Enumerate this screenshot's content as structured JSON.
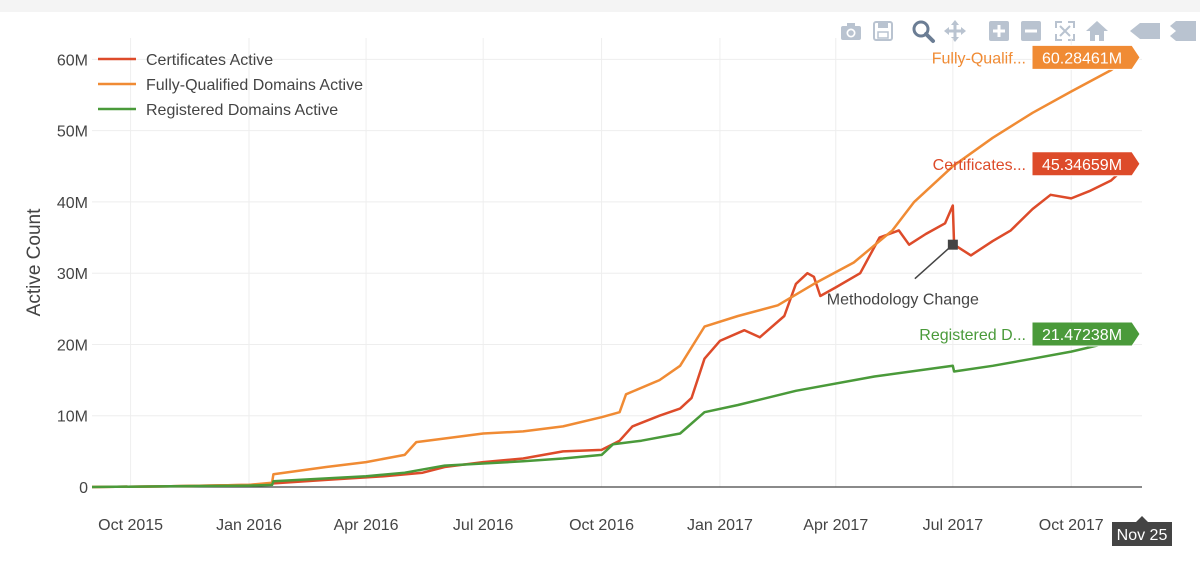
{
  "modebar": {
    "buttons": [
      "camera-icon",
      "save-icon",
      "zoom-icon",
      "pan-icon",
      "zoom-in-icon",
      "zoom-out-icon",
      "autoscale-icon",
      "home-icon",
      "hover-closest-icon",
      "hover-compare-icon"
    ],
    "icon_color": "#b9c3d0",
    "active_color": "#6b7d94"
  },
  "chart_data": {
    "type": "line",
    "ylabel": "Active Count",
    "xlabel": "",
    "ylim": [
      0,
      63000000
    ],
    "xlim": [
      "2015-09-01",
      "2017-11-25"
    ],
    "grid": true,
    "legend_position": "top-left",
    "x_ticks": [
      "Oct 2015",
      "Jan 2016",
      "Apr 2016",
      "Jul 2016",
      "Oct 2016",
      "Jan 2017",
      "Apr 2017",
      "Jul 2017",
      "Oct 2017"
    ],
    "y_ticks": [
      "0",
      "10M",
      "20M",
      "30M",
      "40M",
      "50M",
      "60M"
    ],
    "hover_x_label": "Nov 25",
    "series": [
      {
        "name": "Certificates Active",
        "color": "#dd4b2a",
        "end_label_short": "Certificates...",
        "end_value_label": "45.34659M",
        "points": [
          [
            "2015-09-01",
            0.0
          ],
          [
            "2015-11-01",
            0.1
          ],
          [
            "2016-01-01",
            0.3
          ],
          [
            "2016-01-20",
            0.5
          ],
          [
            "2016-03-01",
            1.0
          ],
          [
            "2016-04-15",
            1.5
          ],
          [
            "2016-05-15",
            2.0
          ],
          [
            "2016-06-01",
            2.8
          ],
          [
            "2016-07-01",
            3.5
          ],
          [
            "2016-08-01",
            4.0
          ],
          [
            "2016-09-01",
            5.0
          ],
          [
            "2016-10-01",
            5.2
          ],
          [
            "2016-10-15",
            6.5
          ],
          [
            "2016-10-25",
            8.5
          ],
          [
            "2016-11-15",
            10.0
          ],
          [
            "2016-12-01",
            11.0
          ],
          [
            "2016-12-10",
            12.5
          ],
          [
            "2016-12-20",
            18.0
          ],
          [
            "2017-01-01",
            20.5
          ],
          [
            "2017-01-20",
            22.0
          ],
          [
            "2017-02-01",
            21.0
          ],
          [
            "2017-02-20",
            24.0
          ],
          [
            "2017-03-01",
            28.5
          ],
          [
            "2017-03-10",
            30.0
          ],
          [
            "2017-03-15",
            29.5
          ],
          [
            "2017-03-20",
            26.8
          ],
          [
            "2017-04-01",
            28.0
          ],
          [
            "2017-04-20",
            30.0
          ],
          [
            "2017-05-05",
            35.0
          ],
          [
            "2017-05-20",
            36.0
          ],
          [
            "2017-05-28",
            34.0
          ],
          [
            "2017-06-10",
            35.5
          ],
          [
            "2017-06-25",
            37.0
          ],
          [
            "2017-07-01",
            39.5
          ],
          [
            "2017-07-02",
            34.0
          ],
          [
            "2017-07-15",
            32.5
          ],
          [
            "2017-08-01",
            34.5
          ],
          [
            "2017-08-15",
            36.0
          ],
          [
            "2017-09-01",
            39.0
          ],
          [
            "2017-09-15",
            41.0
          ],
          [
            "2017-10-01",
            40.5
          ],
          [
            "2017-10-15",
            41.5
          ],
          [
            "2017-11-01",
            43.0
          ],
          [
            "2017-11-15",
            45.35
          ]
        ]
      },
      {
        "name": "Fully-Qualified Domains Active",
        "color": "#f08b34",
        "end_label_short": "Fully-Qualif...",
        "end_value_label": "60.28461M",
        "points": [
          [
            "2015-09-01",
            0.0
          ],
          [
            "2015-11-01",
            0.1
          ],
          [
            "2016-01-01",
            0.3
          ],
          [
            "2016-01-19",
            0.6
          ],
          [
            "2016-01-20",
            1.8
          ],
          [
            "2016-03-01",
            2.8
          ],
          [
            "2016-04-01",
            3.5
          ],
          [
            "2016-05-01",
            4.5
          ],
          [
            "2016-05-10",
            6.3
          ],
          [
            "2016-06-01",
            6.8
          ],
          [
            "2016-07-01",
            7.5
          ],
          [
            "2016-08-01",
            7.8
          ],
          [
            "2016-09-01",
            8.5
          ],
          [
            "2016-10-01",
            9.8
          ],
          [
            "2016-10-15",
            10.5
          ],
          [
            "2016-10-20",
            13.0
          ],
          [
            "2016-11-15",
            15.0
          ],
          [
            "2016-12-01",
            17.0
          ],
          [
            "2016-12-20",
            22.5
          ],
          [
            "2017-01-15",
            24.0
          ],
          [
            "2017-02-15",
            25.5
          ],
          [
            "2017-03-15",
            28.5
          ],
          [
            "2017-04-15",
            31.5
          ],
          [
            "2017-05-15",
            36.0
          ],
          [
            "2017-06-01",
            40.0
          ],
          [
            "2017-07-01",
            45.0
          ],
          [
            "2017-08-01",
            49.0
          ],
          [
            "2017-09-01",
            52.5
          ],
          [
            "2017-10-01",
            55.5
          ],
          [
            "2017-11-01",
            58.5
          ],
          [
            "2017-11-15",
            60.28
          ]
        ]
      },
      {
        "name": "Registered Domains Active",
        "color": "#4a9a3a",
        "end_label_short": "Registered D...",
        "end_value_label": "21.47238M",
        "points": [
          [
            "2015-09-01",
            0.0
          ],
          [
            "2015-11-01",
            0.1
          ],
          [
            "2016-01-01",
            0.2
          ],
          [
            "2016-01-19",
            0.3
          ],
          [
            "2016-01-20",
            0.8
          ],
          [
            "2016-04-01",
            1.5
          ],
          [
            "2016-05-01",
            2.0
          ],
          [
            "2016-06-01",
            3.0
          ],
          [
            "2016-07-01",
            3.3
          ],
          [
            "2016-08-01",
            3.6
          ],
          [
            "2016-09-01",
            4.0
          ],
          [
            "2016-10-01",
            4.5
          ],
          [
            "2016-10-10",
            6.0
          ],
          [
            "2016-11-01",
            6.5
          ],
          [
            "2016-12-01",
            7.5
          ],
          [
            "2016-12-20",
            10.5
          ],
          [
            "2017-01-15",
            11.5
          ],
          [
            "2017-03-01",
            13.5
          ],
          [
            "2017-05-01",
            15.5
          ],
          [
            "2017-07-01",
            17.0
          ],
          [
            "2017-07-02",
            16.2
          ],
          [
            "2017-08-01",
            17.0
          ],
          [
            "2017-09-01",
            18.0
          ],
          [
            "2017-10-01",
            19.0
          ],
          [
            "2017-11-01",
            20.3
          ],
          [
            "2017-11-15",
            21.47
          ]
        ]
      }
    ],
    "annotations": [
      {
        "text": "Methodology Change",
        "x": "2017-07-01",
        "y": 34.0
      }
    ]
  }
}
